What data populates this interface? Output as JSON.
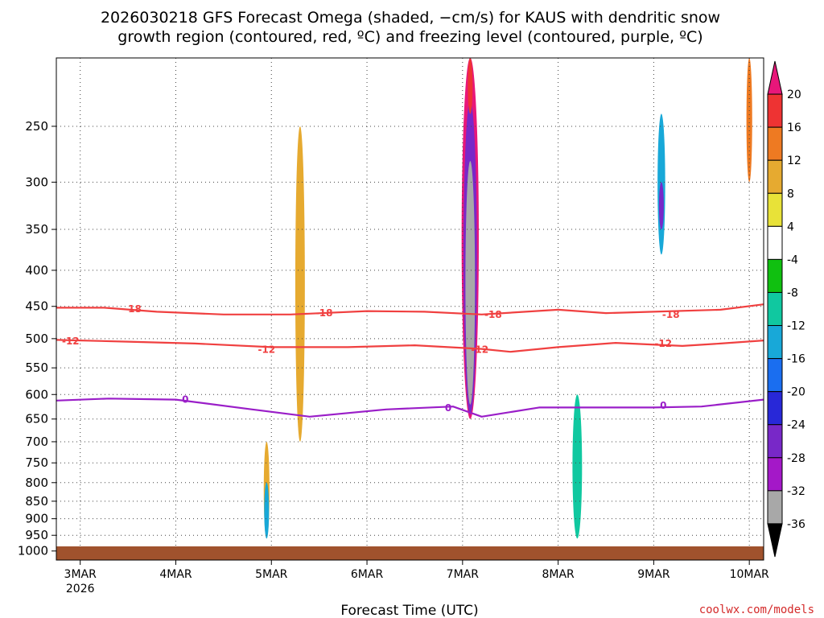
{
  "title": {
    "line1": "2026030218 GFS Forecast Omega (shaded, −cm/s) for KAUS with dendritic snow",
    "line2": "growth region (contoured, red, ºC) and freezing level (contoured, purple, ºC)"
  },
  "credit": "coolwx.com/models",
  "chart_data": {
    "type": "heatmap",
    "xlabel": "Forecast Time (UTC)",
    "ylabel": "",
    "x_ticks": [
      "3MAR",
      "4MAR",
      "5MAR",
      "6MAR",
      "7MAR",
      "8MAR",
      "9MAR",
      "10MAR"
    ],
    "x_year_label": "2026",
    "x_range_days": [
      -0.25,
      7.15
    ],
    "y_ticks": [
      250,
      300,
      350,
      400,
      450,
      500,
      550,
      600,
      650,
      700,
      750,
      800,
      850,
      900,
      950,
      1000
    ],
    "y_range_hPa": [
      200,
      1030
    ],
    "y_scale": "log-pressure",
    "grid": true,
    "colorbar": {
      "levels": [
        20,
        16,
        12,
        8,
        4,
        -4,
        -8,
        -12,
        -16,
        -20,
        -24,
        -28,
        -32,
        -36
      ],
      "colors": [
        "#e8177a",
        "#ee3333",
        "#ee7a22",
        "#e6aa30",
        "#e8e238",
        "#ffffff",
        "#10c010",
        "#10c8a0",
        "#18a8d8",
        "#1a6ef0",
        "#2828d8",
        "#7828c8",
        "#a418c8",
        "#a8a8a8",
        "#000000"
      ]
    },
    "contours": [
      {
        "label": "-18",
        "color": "#f04040",
        "points": [
          [
            -0.25,
            452
          ],
          [
            0.25,
            452
          ],
          [
            0.8,
            458
          ],
          [
            1.5,
            462
          ],
          [
            2.2,
            462
          ],
          [
            3.0,
            457
          ],
          [
            3.6,
            458
          ],
          [
            4.2,
            462
          ],
          [
            5.0,
            455
          ],
          [
            5.5,
            460
          ],
          [
            6.0,
            458
          ],
          [
            6.7,
            455
          ],
          [
            7.15,
            447
          ]
        ]
      },
      {
        "label": "-12",
        "color": "#f04040",
        "points": [
          [
            -0.25,
            502
          ],
          [
            0.5,
            505
          ],
          [
            1.2,
            508
          ],
          [
            2.0,
            514
          ],
          [
            2.8,
            514
          ],
          [
            3.5,
            511
          ],
          [
            4.2,
            517
          ],
          [
            4.5,
            522
          ],
          [
            5.0,
            514
          ],
          [
            5.6,
            507
          ],
          [
            6.3,
            512
          ],
          [
            6.7,
            508
          ],
          [
            7.15,
            503
          ]
        ]
      },
      {
        "label": "0",
        "color": "#9a1ec8",
        "points": [
          [
            -0.25,
            612
          ],
          [
            0.3,
            608
          ],
          [
            1.0,
            610
          ],
          [
            1.8,
            630
          ],
          [
            2.4,
            645
          ],
          [
            3.2,
            630
          ],
          [
            3.9,
            624
          ],
          [
            4.2,
            645
          ],
          [
            4.8,
            626
          ],
          [
            5.5,
            626
          ],
          [
            6.0,
            626
          ],
          [
            6.5,
            624
          ],
          [
            7.15,
            610
          ]
        ]
      }
    ],
    "contour_labels": [
      {
        "text": "-18",
        "x": 0.55,
        "p": 454,
        "color": "#f04040"
      },
      {
        "text": "-18",
        "x": 2.55,
        "p": 460,
        "color": "#f04040"
      },
      {
        "text": "-18",
        "x": 4.32,
        "p": 462,
        "color": "#f04040"
      },
      {
        "text": "-18",
        "x": 6.18,
        "p": 462,
        "color": "#f04040"
      },
      {
        "text": "-12",
        "x": -0.1,
        "p": 504,
        "color": "#f04040"
      },
      {
        "text": "-12",
        "x": 1.95,
        "p": 518,
        "color": "#f04040"
      },
      {
        "text": "-12",
        "x": 4.18,
        "p": 518,
        "color": "#f04040"
      },
      {
        "text": "-12",
        "x": 6.1,
        "p": 508,
        "color": "#f04040"
      },
      {
        "text": "0",
        "x": 1.1,
        "p": 610,
        "color": "#9a1ec8"
      },
      {
        "text": "0",
        "x": 3.85,
        "p": 627,
        "color": "#9a1ec8"
      },
      {
        "text": "0",
        "x": 6.1,
        "p": 622,
        "color": "#9a1ec8"
      }
    ],
    "omega_features": [
      {
        "x": 4.08,
        "p_top": 200,
        "p_bot": 650,
        "width": 0.18,
        "level": 20,
        "desc": "core"
      },
      {
        "x": 4.08,
        "p_top": 230,
        "p_bot": 640,
        "width": 0.14,
        "level": -28
      },
      {
        "x": 4.08,
        "p_top": 280,
        "p_bot": 620,
        "width": 0.1,
        "level": -36
      },
      {
        "x": 4.08,
        "p_top": 200,
        "p_bot": 240,
        "width": 0.05,
        "level": 16
      },
      {
        "x": 2.3,
        "p_top": 250,
        "p_bot": 700,
        "width": 0.1,
        "level": 8
      },
      {
        "x": 1.95,
        "p_top": 700,
        "p_bot": 960,
        "width": 0.06,
        "level": 8
      },
      {
        "x": 1.95,
        "p_top": 800,
        "p_bot": 960,
        "width": 0.04,
        "level": -16
      },
      {
        "x": 6.08,
        "p_top": 240,
        "p_bot": 380,
        "width": 0.08,
        "level": -16
      },
      {
        "x": 6.08,
        "p_top": 300,
        "p_bot": 350,
        "width": 0.04,
        "level": -28
      },
      {
        "x": 5.2,
        "p_top": 600,
        "p_bot": 960,
        "width": 0.1,
        "level": -12
      },
      {
        "x": 7.0,
        "p_top": 200,
        "p_bot": 300,
        "width": 0.06,
        "level": 12
      }
    ]
  }
}
